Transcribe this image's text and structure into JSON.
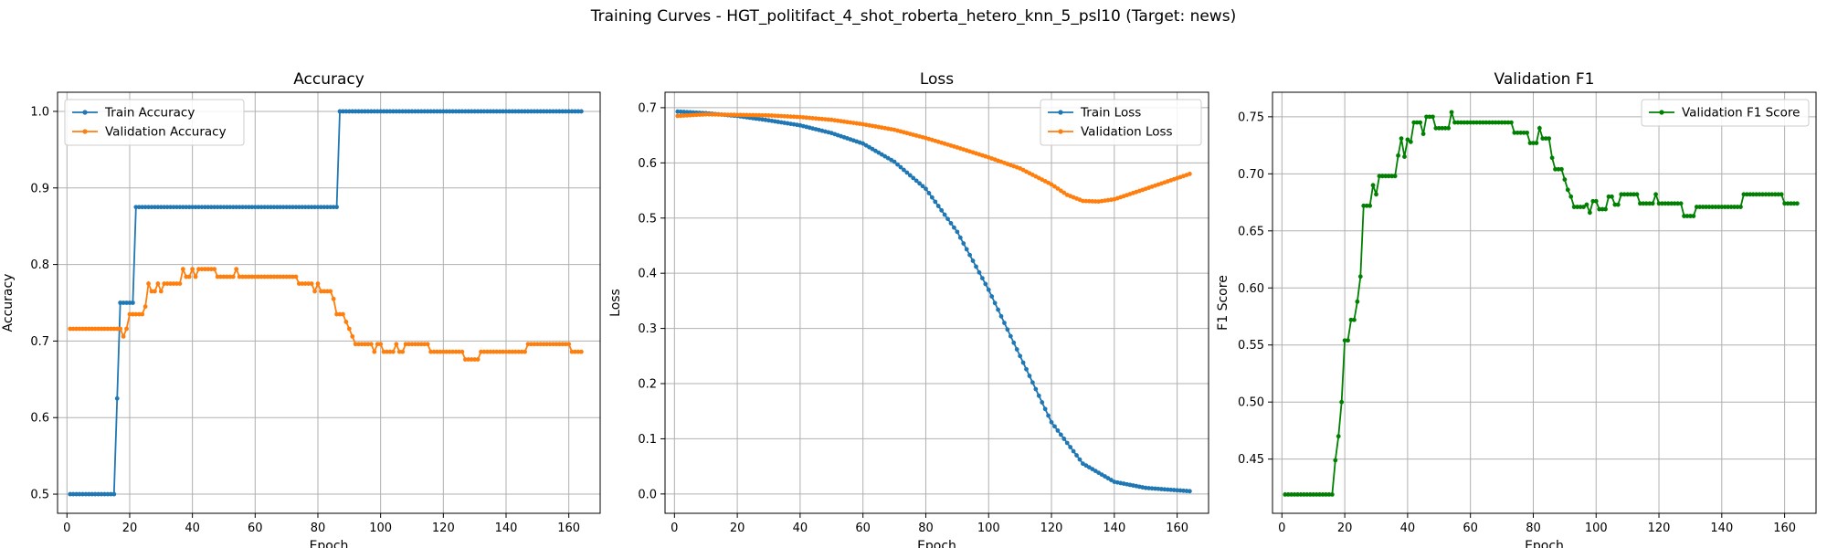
{
  "suptitle": "Training Curves - HGT_politifact_4_shot_roberta_hetero_knn_5_psl10 (Target: news)",
  "colors": {
    "train": "#1f77b4",
    "validation": "#ff7f0e",
    "f1": "#008000"
  },
  "chart_data": [
    {
      "type": "line",
      "title": "Accuracy",
      "xlabel": "Epoch",
      "ylabel": "Accuracy",
      "xlim": [
        -3,
        170
      ],
      "ylim": [
        0.475,
        1.025
      ],
      "xticks": [
        0,
        20,
        40,
        60,
        80,
        100,
        120,
        140,
        160
      ],
      "yticks": [
        0.5,
        0.6,
        0.7,
        0.8,
        0.9,
        1.0
      ],
      "ytick_labels": [
        "0.5",
        "0.6",
        "0.7",
        "0.8",
        "0.9",
        "1.0"
      ],
      "grid": true,
      "legend": "upper left",
      "series": [
        {
          "name": "Train Accuracy",
          "color": "#1f77b4",
          "points": [
            [
              1,
              0.5
            ],
            [
              15,
              0.5
            ],
            [
              16,
              0.625
            ],
            [
              17,
              0.75
            ],
            [
              21,
              0.75
            ],
            [
              22,
              0.875
            ],
            [
              86,
              0.875
            ],
            [
              87,
              1.0
            ],
            [
              164,
              1.0
            ]
          ]
        },
        {
          "name": "Validation Accuracy",
          "color": "#ff7f0e",
          "points": [
            [
              1,
              0.716
            ],
            [
              17,
              0.716
            ],
            [
              18,
              0.706
            ],
            [
              19,
              0.716
            ],
            [
              20,
              0.735
            ],
            [
              24,
              0.735
            ],
            [
              25,
              0.745
            ],
            [
              26,
              0.775
            ],
            [
              27,
              0.765
            ],
            [
              28,
              0.765
            ],
            [
              29,
              0.775
            ],
            [
              30,
              0.765
            ],
            [
              31,
              0.775
            ],
            [
              36,
              0.775
            ],
            [
              37,
              0.794
            ],
            [
              38,
              0.784
            ],
            [
              39,
              0.784
            ],
            [
              40,
              0.794
            ],
            [
              41,
              0.784
            ],
            [
              42,
              0.794
            ],
            [
              47,
              0.794
            ],
            [
              48,
              0.784
            ],
            [
              53,
              0.784
            ],
            [
              54,
              0.794
            ],
            [
              55,
              0.784
            ],
            [
              73,
              0.784
            ],
            [
              74,
              0.775
            ],
            [
              78,
              0.775
            ],
            [
              79,
              0.765
            ],
            [
              80,
              0.775
            ],
            [
              81,
              0.765
            ],
            [
              84,
              0.765
            ],
            [
              85,
              0.755
            ],
            [
              86,
              0.735
            ],
            [
              88,
              0.735
            ],
            [
              89,
              0.725
            ],
            [
              90,
              0.716
            ],
            [
              91,
              0.706
            ],
            [
              92,
              0.696
            ],
            [
              97,
              0.696
            ],
            [
              98,
              0.686
            ],
            [
              99,
              0.696
            ],
            [
              100,
              0.696
            ],
            [
              101,
              0.686
            ],
            [
              104,
              0.686
            ],
            [
              105,
              0.696
            ],
            [
              106,
              0.686
            ],
            [
              107,
              0.686
            ],
            [
              108,
              0.696
            ],
            [
              115,
              0.696
            ],
            [
              116,
              0.686
            ],
            [
              126,
              0.686
            ],
            [
              127,
              0.676
            ],
            [
              131,
              0.676
            ],
            [
              132,
              0.686
            ],
            [
              146,
              0.686
            ],
            [
              147,
              0.696
            ],
            [
              160,
              0.696
            ],
            [
              161,
              0.686
            ],
            [
              164,
              0.686
            ]
          ]
        }
      ]
    },
    {
      "type": "line",
      "title": "Loss",
      "xlabel": "Epoch",
      "ylabel": "Loss",
      "xlim": [
        -3,
        170
      ],
      "ylim": [
        -0.035,
        0.728
      ],
      "xticks": [
        0,
        20,
        40,
        60,
        80,
        100,
        120,
        140,
        160
      ],
      "yticks": [
        0.0,
        0.1,
        0.2,
        0.3,
        0.4,
        0.5,
        0.6,
        0.7
      ],
      "ytick_labels": [
        "0.0",
        "0.1",
        "0.2",
        "0.3",
        "0.4",
        "0.5",
        "0.6",
        "0.7"
      ],
      "grid": true,
      "legend": "upper right",
      "series": [
        {
          "name": "Train Loss",
          "color": "#1f77b4",
          "points": [
            [
              1,
              0.693
            ],
            [
              10,
              0.69
            ],
            [
              20,
              0.685
            ],
            [
              30,
              0.677
            ],
            [
              40,
              0.668
            ],
            [
              50,
              0.654
            ],
            [
              60,
              0.635
            ],
            [
              70,
              0.602
            ],
            [
              80,
              0.553
            ],
            [
              90,
              0.475
            ],
            [
              100,
              0.37
            ],
            [
              110,
              0.25
            ],
            [
              120,
              0.13
            ],
            [
              130,
              0.055
            ],
            [
              140,
              0.022
            ],
            [
              150,
              0.011
            ],
            [
              164,
              0.005
            ]
          ]
        },
        {
          "name": "Validation Loss",
          "color": "#ff7f0e",
          "points": [
            [
              1,
              0.685
            ],
            [
              10,
              0.688
            ],
            [
              20,
              0.687
            ],
            [
              30,
              0.686
            ],
            [
              40,
              0.683
            ],
            [
              50,
              0.678
            ],
            [
              60,
              0.67
            ],
            [
              70,
              0.66
            ],
            [
              80,
              0.645
            ],
            [
              90,
              0.628
            ],
            [
              100,
              0.61
            ],
            [
              110,
              0.59
            ],
            [
              120,
              0.561
            ],
            [
              125,
              0.542
            ],
            [
              130,
              0.531
            ],
            [
              135,
              0.53
            ],
            [
              140,
              0.534
            ],
            [
              150,
              0.553
            ],
            [
              164,
              0.58
            ]
          ]
        }
      ]
    },
    {
      "type": "line",
      "title": "Validation F1",
      "xlabel": "Epoch",
      "ylabel": "F1 Score",
      "xlim": [
        -3,
        170
      ],
      "ylim": [
        0.4025,
        0.7715
      ],
      "xticks": [
        0,
        20,
        40,
        60,
        80,
        100,
        120,
        140,
        160
      ],
      "yticks": [
        0.45,
        0.5,
        0.55,
        0.6,
        0.65,
        0.7,
        0.75
      ],
      "ytick_labels": [
        "0.45",
        "0.50",
        "0.55",
        "0.60",
        "0.65",
        "0.70",
        "0.75"
      ],
      "grid": true,
      "legend": "upper right",
      "series": [
        {
          "name": "Validation F1 Score",
          "color": "#008000",
          "points": [
            [
              1,
              0.419
            ],
            [
              16,
              0.419
            ],
            [
              17,
              0.449
            ],
            [
              18,
              0.47
            ],
            [
              19,
              0.5
            ],
            [
              20,
              0.554
            ],
            [
              21,
              0.554
            ],
            [
              22,
              0.572
            ],
            [
              23,
              0.572
            ],
            [
              24,
              0.588
            ],
            [
              25,
              0.61
            ],
            [
              26,
              0.672
            ],
            [
              28,
              0.672
            ],
            [
              29,
              0.69
            ],
            [
              30,
              0.682
            ],
            [
              31,
              0.698
            ],
            [
              36,
              0.698
            ],
            [
              37,
              0.716
            ],
            [
              38,
              0.731
            ],
            [
              39,
              0.715
            ],
            [
              40,
              0.73
            ],
            [
              41,
              0.728
            ],
            [
              42,
              0.745
            ],
            [
              44,
              0.745
            ],
            [
              45,
              0.735
            ],
            [
              46,
              0.75
            ],
            [
              48,
              0.75
            ],
            [
              49,
              0.74
            ],
            [
              53,
              0.74
            ],
            [
              54,
              0.754
            ],
            [
              55,
              0.745
            ],
            [
              73,
              0.745
            ],
            [
              74,
              0.736
            ],
            [
              78,
              0.736
            ],
            [
              79,
              0.727
            ],
            [
              81,
              0.727
            ],
            [
              82,
              0.74
            ],
            [
              83,
              0.731
            ],
            [
              85,
              0.731
            ],
            [
              86,
              0.714
            ],
            [
              87,
              0.704
            ],
            [
              89,
              0.704
            ],
            [
              90,
              0.695
            ],
            [
              91,
              0.686
            ],
            [
              92,
              0.68
            ],
            [
              93,
              0.671
            ],
            [
              96,
              0.671
            ],
            [
              97,
              0.673
            ],
            [
              98,
              0.666
            ],
            [
              99,
              0.676
            ],
            [
              100,
              0.676
            ],
            [
              101,
              0.669
            ],
            [
              103,
              0.669
            ],
            [
              104,
              0.68
            ],
            [
              105,
              0.68
            ],
            [
              106,
              0.673
            ],
            [
              107,
              0.673
            ],
            [
              108,
              0.682
            ],
            [
              113,
              0.682
            ],
            [
              114,
              0.674
            ],
            [
              118,
              0.674
            ],
            [
              119,
              0.682
            ],
            [
              120,
              0.674
            ],
            [
              127,
              0.674
            ],
            [
              128,
              0.663
            ],
            [
              131,
              0.663
            ],
            [
              132,
              0.671
            ],
            [
              146,
              0.671
            ],
            [
              147,
              0.682
            ],
            [
              159,
              0.682
            ],
            [
              160,
              0.674
            ],
            [
              164,
              0.674
            ]
          ]
        }
      ]
    }
  ]
}
